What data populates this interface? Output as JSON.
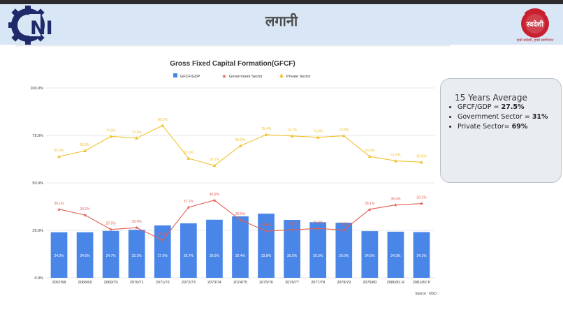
{
  "slide": {
    "title": "लगानी"
  },
  "logo_left": {
    "text": "NI"
  },
  "logo_right": {
    "text": "स्वदेशी",
    "tagline": "हाम्रो स्वदेशी, हाम्रो स्वाभिमान"
  },
  "colors": {
    "gfcf": "#4a86e8",
    "government": "#e06055",
    "private": "#f1c232",
    "header_bg": "#d9e6f5"
  },
  "chart_data": {
    "type": "bar+line",
    "title": "Gross Fixed Capital Formation(GFCF)",
    "source": "Source : NSO",
    "categories": [
      "2067/68",
      "2068/69",
      "2069/70",
      "2070/71",
      "2071/72",
      "2072/73",
      "2073/74",
      "2074/75",
      "2075/76",
      "2076/77",
      "2077/78",
      "2078/79",
      "2079/80",
      "2080/81 R",
      "2081/82 P"
    ],
    "ylim": [
      0,
      100
    ],
    "yticks": [
      "0.0%",
      "25.0%",
      "50.0%",
      "75.0%",
      "100.0%"
    ],
    "grid": true,
    "legend_position": "top",
    "series": [
      {
        "name": "GFCF/GDP",
        "kind": "bar",
        "values": [
          24.0,
          24.0,
          24.7,
          25.3,
          27.6,
          28.7,
          30.6,
          32.4,
          33.8,
          30.5,
          29.3,
          29.0,
          24.6,
          24.3,
          24.1
        ],
        "labels": [
          "24.0%",
          "24.0%",
          "24.7%",
          "25.3%",
          "27.6%",
          "28.7%",
          "30.6%",
          "32.4%",
          "33.8%",
          "30.5%",
          "29.3%",
          "29.0%",
          "24.6%",
          "24.3%",
          "24.1%"
        ]
      },
      {
        "name": "Government Sector",
        "kind": "line",
        "values": [
          36.1,
          33.1,
          25.5,
          26.4,
          19.8,
          37.1,
          40.9,
          30.5,
          24.6,
          25.3,
          26.0,
          25.2,
          36.1,
          38.4,
          39.1
        ],
        "labels": [
          "36.1%",
          "33.1%",
          "25.5%",
          "26.4%",
          "19.8%",
          "37.1%",
          "40.9%",
          "30.5%",
          "24.6%",
          "25.3%",
          "26.0%",
          "25.2%",
          "36.1%",
          "38.4%",
          "39.1%"
        ]
      },
      {
        "name": "Private Sector",
        "kind": "line",
        "values": [
          63.9,
          66.9,
          74.5,
          73.6,
          80.2,
          62.9,
          59.1,
          69.5,
          75.4,
          74.7,
          74.0,
          74.8,
          63.9,
          61.6,
          60.9
        ],
        "labels": [
          "63.9%",
          "66.9%",
          "74.5%",
          "73.6%",
          "80.2%",
          "62.9%",
          "59.1%",
          "69.5%",
          "75.4%",
          "74.7%",
          "74.0%",
          "74.8%",
          "63.9%",
          "61.6%",
          "60.9%"
        ]
      }
    ]
  },
  "summary": {
    "title": "15 Years Average",
    "items": [
      {
        "label": "GFCF/GDP = ",
        "value": "27.5%"
      },
      {
        "label": "Government Sector = ",
        "value": "31%"
      },
      {
        "label": "Private Sector= ",
        "value": "69%"
      }
    ]
  }
}
